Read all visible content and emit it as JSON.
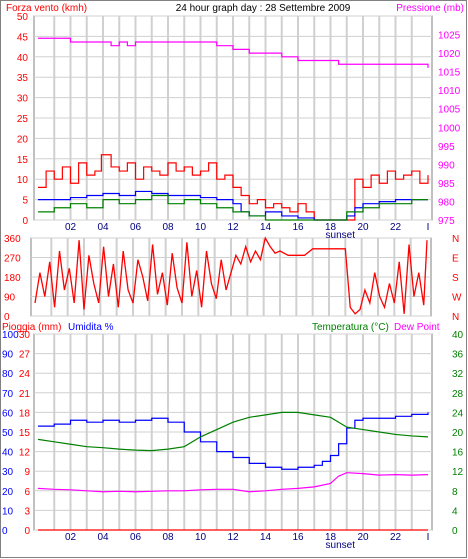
{
  "colors": {
    "wind": "#ff0000",
    "gust": "#0000ff",
    "avg": "#008000",
    "pressure": "#ff00ff",
    "rain": "#ff0000",
    "humidity": "#0000ff",
    "temp": "#008000",
    "dew": "#ff00ff",
    "grid": "#d0d0d0",
    "frame": "#808080"
  },
  "header": {
    "wind_label": "Forza vento (kmh)",
    "title": "24 hour graph day : 28 Settembre 2009",
    "pressure_label": "Pressione (mb)"
  },
  "footer": {
    "middle_label": "Pioggia (mm)",
    "humidity_label": "Umidita %",
    "temp_label": "Temperatura (°C)",
    "dew_label": "Dew Point"
  },
  "chart_data": [
    {
      "type": "line",
      "title": "24 hour graph day : 28 Settembre 2009",
      "ylabel": "Forza vento (kmh)",
      "y2label": "Pressione (mb)",
      "x_ticks": [
        "02",
        "04",
        "06",
        "08",
        "10",
        "12",
        "14",
        "16",
        "18",
        "20",
        "22",
        "I"
      ],
      "x_note": "sunset",
      "ylim": [
        0,
        50
      ],
      "y_ticks": [
        0,
        5,
        10,
        15,
        20,
        25,
        30,
        35,
        40,
        45,
        50
      ],
      "y2lim": [
        975,
        1030
      ],
      "y2_ticks": [
        975,
        980,
        985,
        990,
        995,
        1000,
        1005,
        1010,
        1015,
        1020,
        1025
      ],
      "series": [
        {
          "name": "",
          "axis": "left",
          "color": "wind",
          "x": [
            0,
            0.5,
            1,
            1.5,
            2,
            2.5,
            3,
            3.5,
            3.9,
            4.5,
            5,
            5.5,
            6,
            6.5,
            7,
            7.5,
            8,
            8.5,
            9,
            9.5,
            10,
            10.5,
            11,
            11.5,
            12,
            12.5,
            13,
            13.5,
            14,
            14.5,
            15,
            15.5,
            16,
            16.5,
            17,
            17.5,
            18,
            18.5,
            19,
            19.5,
            20,
            20.5,
            21,
            21.5,
            22,
            22.5,
            23,
            23.5,
            24
          ],
          "y": [
            8,
            12,
            10,
            13,
            9,
            14,
            11,
            12,
            16,
            13,
            12,
            14,
            10,
            13,
            12,
            11,
            14,
            12,
            13,
            11,
            12,
            14,
            10,
            11,
            8,
            6,
            4,
            5,
            3,
            4,
            3,
            2,
            4,
            2,
            0,
            0,
            0,
            0,
            0,
            10,
            8,
            11,
            9,
            12,
            10,
            11,
            12,
            9,
            11
          ]
        },
        {
          "name": "",
          "axis": "left",
          "color": "gust",
          "x": [
            0,
            1,
            2,
            3,
            4,
            5,
            6,
            7,
            8,
            9,
            10,
            11,
            12,
            12.5,
            13,
            14,
            15,
            16,
            17,
            18,
            19,
            19.5,
            20,
            21,
            22,
            23,
            24
          ],
          "y": [
            5,
            5,
            5.5,
            6,
            6.5,
            6,
            7,
            6.5,
            6,
            6,
            5.5,
            5,
            4,
            2,
            1,
            2,
            1,
            0.5,
            0,
            0,
            1,
            3,
            4,
            4.5,
            5,
            5,
            5
          ]
        },
        {
          "name": "",
          "axis": "left",
          "color": "avg",
          "x": [
            0,
            1,
            2,
            3,
            4,
            5,
            6,
            7,
            8,
            9,
            10,
            11,
            12,
            13,
            14,
            15,
            16,
            17,
            18,
            19,
            20,
            21,
            22,
            23,
            24
          ],
          "y": [
            2,
            3,
            4,
            3,
            5,
            4,
            5,
            6,
            4,
            5,
            4,
            3,
            2,
            1,
            0,
            0,
            0,
            0,
            0,
            2,
            3,
            4,
            4,
            5,
            5
          ]
        },
        {
          "name": "",
          "axis": "right",
          "color": "pressure",
          "x": [
            0,
            2,
            3,
            4.5,
            5,
            5.5,
            6,
            10,
            11,
            12,
            13,
            14,
            15,
            16,
            17,
            18,
            18.5,
            19,
            20,
            21,
            22,
            23,
            24
          ],
          "y": [
            1024,
            1023,
            1023,
            1022,
            1023,
            1022,
            1023,
            1023,
            1022,
            1021,
            1020,
            1020,
            1019,
            1018,
            1018,
            1018,
            1017,
            1017,
            1017,
            1017,
            1017,
            1017,
            1016
          ]
        }
      ]
    },
    {
      "type": "line",
      "ylabel": "",
      "y_ticks": [
        0,
        90,
        180,
        270,
        360
      ],
      "y2_labels": [
        "N",
        "W",
        "S",
        "E",
        "N"
      ],
      "ylim": [
        0,
        360
      ],
      "series": [
        {
          "name": "",
          "color": "wind",
          "x": [
            0,
            0.3,
            0.6,
            0.9,
            1.2,
            1.5,
            1.8,
            2.1,
            2.4,
            2.7,
            3,
            3.3,
            3.6,
            3.9,
            4.2,
            4.5,
            4.8,
            5.1,
            5.4,
            5.7,
            6,
            6.3,
            6.6,
            6.9,
            7.2,
            7.5,
            7.8,
            8.1,
            8.4,
            8.7,
            9,
            9.3,
            9.6,
            9.9,
            10.2,
            10.5,
            10.8,
            11.1,
            11.4,
            11.7,
            12,
            12.3,
            12.6,
            12.9,
            13.2,
            13.5,
            13.8,
            14.1,
            14.4,
            14.7,
            15,
            15.5,
            16,
            16.5,
            17,
            17.5,
            18,
            18.5,
            19,
            19.3,
            19.6,
            19.9,
            20.2,
            20.5,
            20.8,
            21.1,
            21.4,
            21.7,
            22,
            22.3,
            22.6,
            22.9,
            23.2,
            23.5,
            23.8,
            24
          ],
          "y": [
            60,
            200,
            90,
            250,
            40,
            300,
            120,
            220,
            60,
            350,
            30,
            280,
            150,
            60,
            320,
            90,
            240,
            40,
            300,
            120,
            60,
            260,
            180,
            70,
            330,
            100,
            200,
            50,
            290,
            130,
            60,
            340,
            90,
            210,
            40,
            300,
            150,
            80,
            260,
            120,
            200,
            280,
            240,
            320,
            250,
            300,
            260,
            360,
            320,
            290,
            300,
            280,
            280,
            280,
            310,
            310,
            310,
            310,
            310,
            40,
            10,
            30,
            120,
            60,
            200,
            90,
            40,
            150,
            60,
            250,
            10,
            330,
            90,
            200,
            50,
            350
          ]
        }
      ]
    },
    {
      "type": "line",
      "ylabel": "Pioggia (mm)",
      "y_ticks_humidity": [
        0,
        10,
        20,
        30,
        40,
        50,
        60,
        70,
        80,
        90,
        100
      ],
      "y_ticks_rain": [
        0,
        3,
        6,
        9,
        12,
        15,
        18,
        21,
        24,
        27,
        30
      ],
      "ylim_humidity": [
        0,
        100
      ],
      "y2label": "Temperatura (°C)",
      "y2lim": [
        0,
        40
      ],
      "y2_ticks": [
        0,
        4,
        8,
        12,
        16,
        20,
        24,
        28,
        32,
        36,
        40
      ],
      "series": [
        {
          "name": "Pioggia (mm)",
          "axis": "rain",
          "color": "rain",
          "x": [
            0,
            24
          ],
          "y": [
            0,
            0
          ]
        },
        {
          "name": "Umidita %",
          "axis": "humidity",
          "color": "humidity",
          "x": [
            0,
            1,
            2,
            3,
            4,
            5,
            6,
            7,
            8,
            9,
            10,
            11,
            12,
            13,
            14,
            15,
            16,
            17,
            17.5,
            18,
            18.5,
            19,
            19.5,
            20,
            21,
            22,
            23,
            24
          ],
          "y": [
            53,
            54,
            56,
            55,
            56,
            55,
            56,
            57,
            55,
            50,
            45,
            40,
            37,
            34,
            32,
            31,
            32,
            33,
            35,
            38,
            44,
            52,
            56,
            57,
            57,
            58,
            59,
            60
          ]
        },
        {
          "name": "Temperatura (°C)",
          "axis": "temp",
          "color": "temp",
          "x": [
            0,
            1,
            2,
            3,
            4,
            5,
            6,
            7,
            8,
            9,
            10,
            11,
            12,
            13,
            14,
            15,
            16,
            17,
            18,
            19,
            20,
            21,
            22,
            23,
            24
          ],
          "y": [
            18.5,
            18,
            17.5,
            17,
            16.8,
            16.5,
            16.3,
            16.2,
            16.5,
            17,
            19,
            20.5,
            22,
            23,
            23.5,
            24,
            24,
            23.5,
            23,
            21,
            20.5,
            20,
            19.5,
            19.2,
            19
          ]
        },
        {
          "name": "Dew Point",
          "axis": "temp",
          "color": "dew",
          "x": [
            0,
            1,
            2,
            3,
            4,
            5,
            6,
            7,
            8,
            9,
            10,
            11,
            12,
            13,
            14,
            15,
            16,
            17,
            18,
            18.5,
            19,
            20,
            21,
            22,
            23,
            24
          ],
          "y": [
            8.5,
            8.3,
            8.2,
            8,
            7.8,
            7.9,
            7.8,
            7.9,
            8,
            8,
            8.2,
            8.3,
            8.3,
            7.8,
            8,
            8.3,
            8.5,
            8.8,
            9.5,
            11,
            11.7,
            11.5,
            11.2,
            11.3,
            11.2,
            11.3
          ]
        }
      ]
    }
  ]
}
